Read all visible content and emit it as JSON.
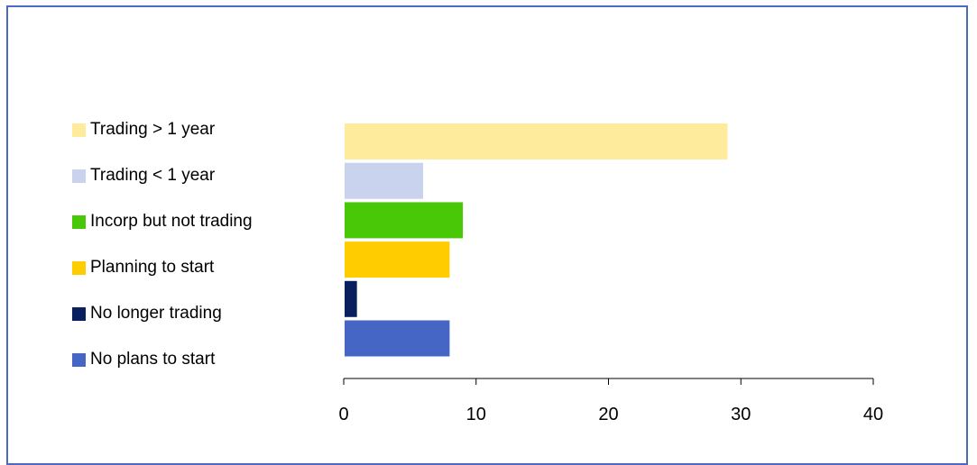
{
  "chart_data": {
    "type": "bar",
    "orientation": "horizontal",
    "categories": [
      "Trading > 1 year",
      "Trading < 1 year",
      "Incorp but not trading",
      "Planning to start",
      "No longer trading",
      "No plans to start"
    ],
    "values": [
      29,
      6,
      9,
      8,
      1,
      8
    ],
    "colors": [
      "#ffeb9c",
      "#c9d3ee",
      "#48c806",
      "#ffcc00",
      "#0a205e",
      "#4566c4"
    ],
    "xlim": [
      0,
      40
    ],
    "xticks": [
      0,
      10,
      20,
      30,
      40
    ],
    "legend_position": "left",
    "grid": false,
    "title": "",
    "xlabel": "",
    "ylabel": ""
  }
}
